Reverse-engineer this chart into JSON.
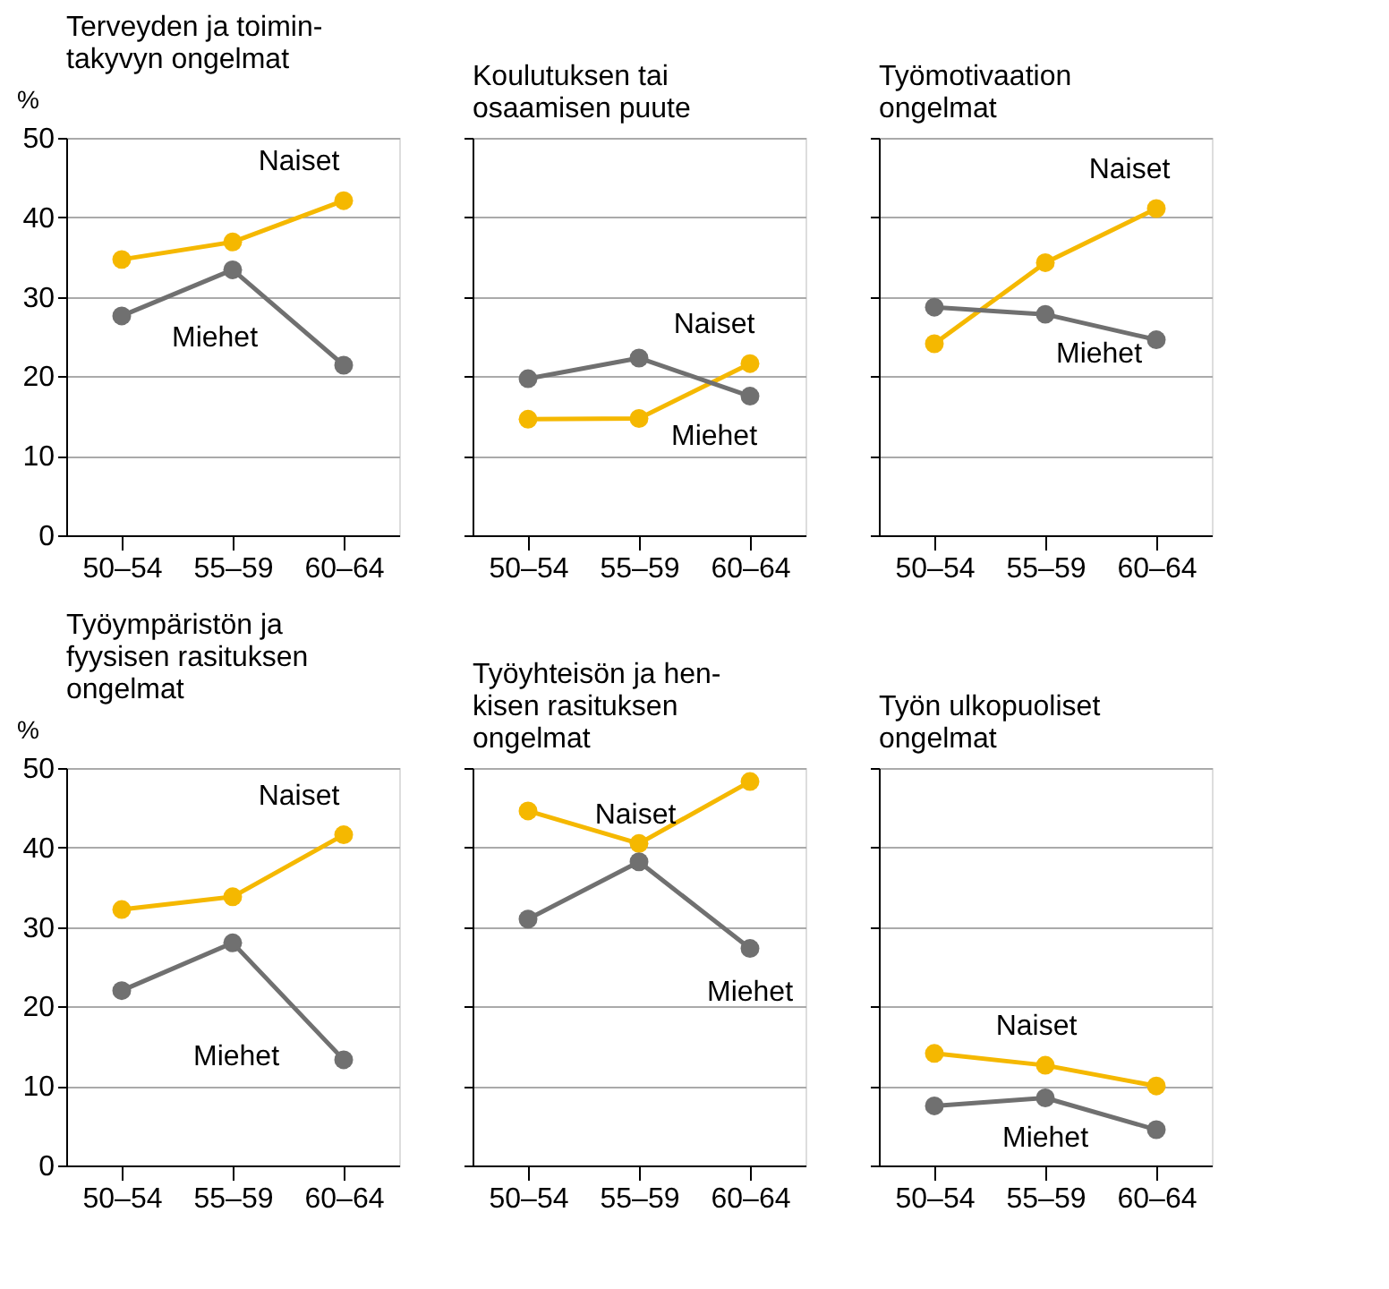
{
  "chart_data": [
    {
      "type": "line",
      "title": "Terveyden ja toimin-\ntakyvyn ongelmat",
      "ylabel": "%",
      "categories": [
        "50–54",
        "55–59",
        "60–64"
      ],
      "ylim": [
        0,
        50
      ],
      "yticks": [
        0,
        10,
        20,
        30,
        40,
        50
      ],
      "grid": "y",
      "marker": "circle",
      "line_style": "solid",
      "series": [
        {
          "name": "Naiset",
          "color": "#f5b800",
          "values": [
            34.7,
            36.9,
            42.1
          ]
        },
        {
          "name": "Miehet",
          "color": "#707070",
          "values": [
            27.6,
            33.4,
            21.4
          ]
        }
      ]
    },
    {
      "type": "line",
      "title": "Koulutuksen tai\nosaamisen puute",
      "categories": [
        "50–54",
        "55–59",
        "60–64"
      ],
      "ylim": [
        0,
        50
      ],
      "yticks": [
        0,
        10,
        20,
        30,
        40,
        50
      ],
      "tick_labels": "x",
      "grid": "y",
      "marker": "circle",
      "line_style": "solid",
      "series": [
        {
          "name": "Naiset",
          "color": "#f5b800",
          "values": [
            14.6,
            14.7,
            21.6
          ]
        },
        {
          "name": "Miehet",
          "color": "#707070",
          "values": [
            19.7,
            22.3,
            17.5
          ]
        }
      ]
    },
    {
      "type": "line",
      "title": "Työmotivaation\nongelmat",
      "categories": [
        "50–54",
        "55–59",
        "60–64"
      ],
      "ylim": [
        0,
        50
      ],
      "yticks": [
        0,
        10,
        20,
        30,
        40,
        50
      ],
      "tick_labels": "x",
      "grid": "y",
      "marker": "circle",
      "line_style": "solid",
      "series": [
        {
          "name": "Naiset",
          "color": "#f5b800",
          "values": [
            24.1,
            34.3,
            41.1
          ]
        },
        {
          "name": "Miehet",
          "color": "#707070",
          "values": [
            28.7,
            27.8,
            24.6
          ]
        }
      ]
    },
    {
      "type": "line",
      "title": "Työympäristön ja\nfyysisen rasituksen\nongelmat",
      "ylabel": "%",
      "categories": [
        "50–54",
        "55–59",
        "60–64"
      ],
      "ylim": [
        0,
        50
      ],
      "yticks": [
        0,
        10,
        20,
        30,
        40,
        50
      ],
      "grid": "y",
      "marker": "circle",
      "line_style": "solid",
      "series": [
        {
          "name": "Naiset",
          "color": "#f5b800",
          "values": [
            32.2,
            33.8,
            41.6
          ]
        },
        {
          "name": "Miehet",
          "color": "#707070",
          "values": [
            22.0,
            28.0,
            13.3
          ]
        }
      ]
    },
    {
      "type": "line",
      "title": "Työyhteisön ja hen-\nkisen rasituksen\nongelmat",
      "categories": [
        "50–54",
        "55–59",
        "60–64"
      ],
      "ylim": [
        0,
        50
      ],
      "yticks": [
        0,
        10,
        20,
        30,
        40,
        50
      ],
      "tick_labels": "x",
      "grid": "y",
      "marker": "circle",
      "line_style": "solid",
      "series": [
        {
          "name": "Naiset",
          "color": "#f5b800",
          "values": [
            44.6,
            40.5,
            48.3
          ]
        },
        {
          "name": "Miehet",
          "color": "#707070",
          "values": [
            31.0,
            38.2,
            27.3
          ]
        }
      ]
    },
    {
      "type": "line",
      "title": "Työn ulkopuoliset\nongelmat",
      "categories": [
        "50–54",
        "55–59",
        "60–64"
      ],
      "ylim": [
        0,
        50
      ],
      "yticks": [
        0,
        10,
        20,
        30,
        40,
        50
      ],
      "tick_labels": "x",
      "grid": "y",
      "marker": "circle",
      "line_style": "solid",
      "series": [
        {
          "name": "Naiset",
          "color": "#f5b800",
          "values": [
            14.1,
            12.6,
            10.0
          ]
        },
        {
          "name": "Miehet",
          "color": "#707070",
          "values": [
            7.5,
            8.5,
            4.5
          ]
        }
      ]
    }
  ]
}
